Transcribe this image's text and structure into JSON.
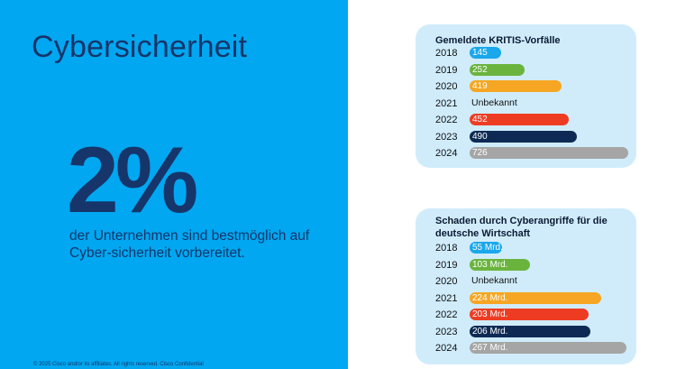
{
  "title": "Cybersicherheit",
  "stat": {
    "value": "2%",
    "description": "der Unternehmen sind bestmöglich auf Cyber-sicherheit vorbereitet."
  },
  "footer": "© 2025 Cisco and/or its affiliates. All rights reserved. Cisco Confidential",
  "colors": {
    "panel": "#01a7f0",
    "text_dark": "#16356a",
    "card_bg": "#d0ecfb"
  },
  "chart_data": [
    {
      "type": "bar",
      "orientation": "horizontal",
      "title": "Gemeldete KRITIS-Vorfälle",
      "categories": [
        "2018",
        "2019",
        "2020",
        "2021",
        "2022",
        "2023",
        "2024"
      ],
      "values": [
        145,
        252,
        419,
        null,
        452,
        490,
        726
      ],
      "labels": [
        "145",
        "252",
        "419",
        "Unbekannt",
        "452",
        "490",
        "726"
      ],
      "colors": [
        "#1aa7ec",
        "#6ab43e",
        "#f6a623",
        "#ffffff",
        "#ee3c23",
        "#0e2a54",
        "#a5a5a5"
      ],
      "xlim": [
        0,
        726
      ]
    },
    {
      "type": "bar",
      "orientation": "horizontal",
      "title": "Schaden durch Cyberangriffe für die deutsche Wirtschaft",
      "categories": [
        "2018",
        "2019",
        "2020",
        "2021",
        "2022",
        "2023",
        "2024"
      ],
      "values": [
        55,
        103,
        null,
        224,
        203,
        206,
        267
      ],
      "labels": [
        "55 Mrd.",
        "103 Mrd.",
        "Unbekannt",
        "224 Mrd.",
        "203 Mrd.",
        "206 Mrd.",
        "267 Mrd."
      ],
      "colors": [
        "#1aa7ec",
        "#6ab43e",
        "#ffffff",
        "#f6a623",
        "#ee3c23",
        "#0e2a54",
        "#a5a5a5"
      ],
      "xlim": [
        0,
        267
      ]
    }
  ]
}
